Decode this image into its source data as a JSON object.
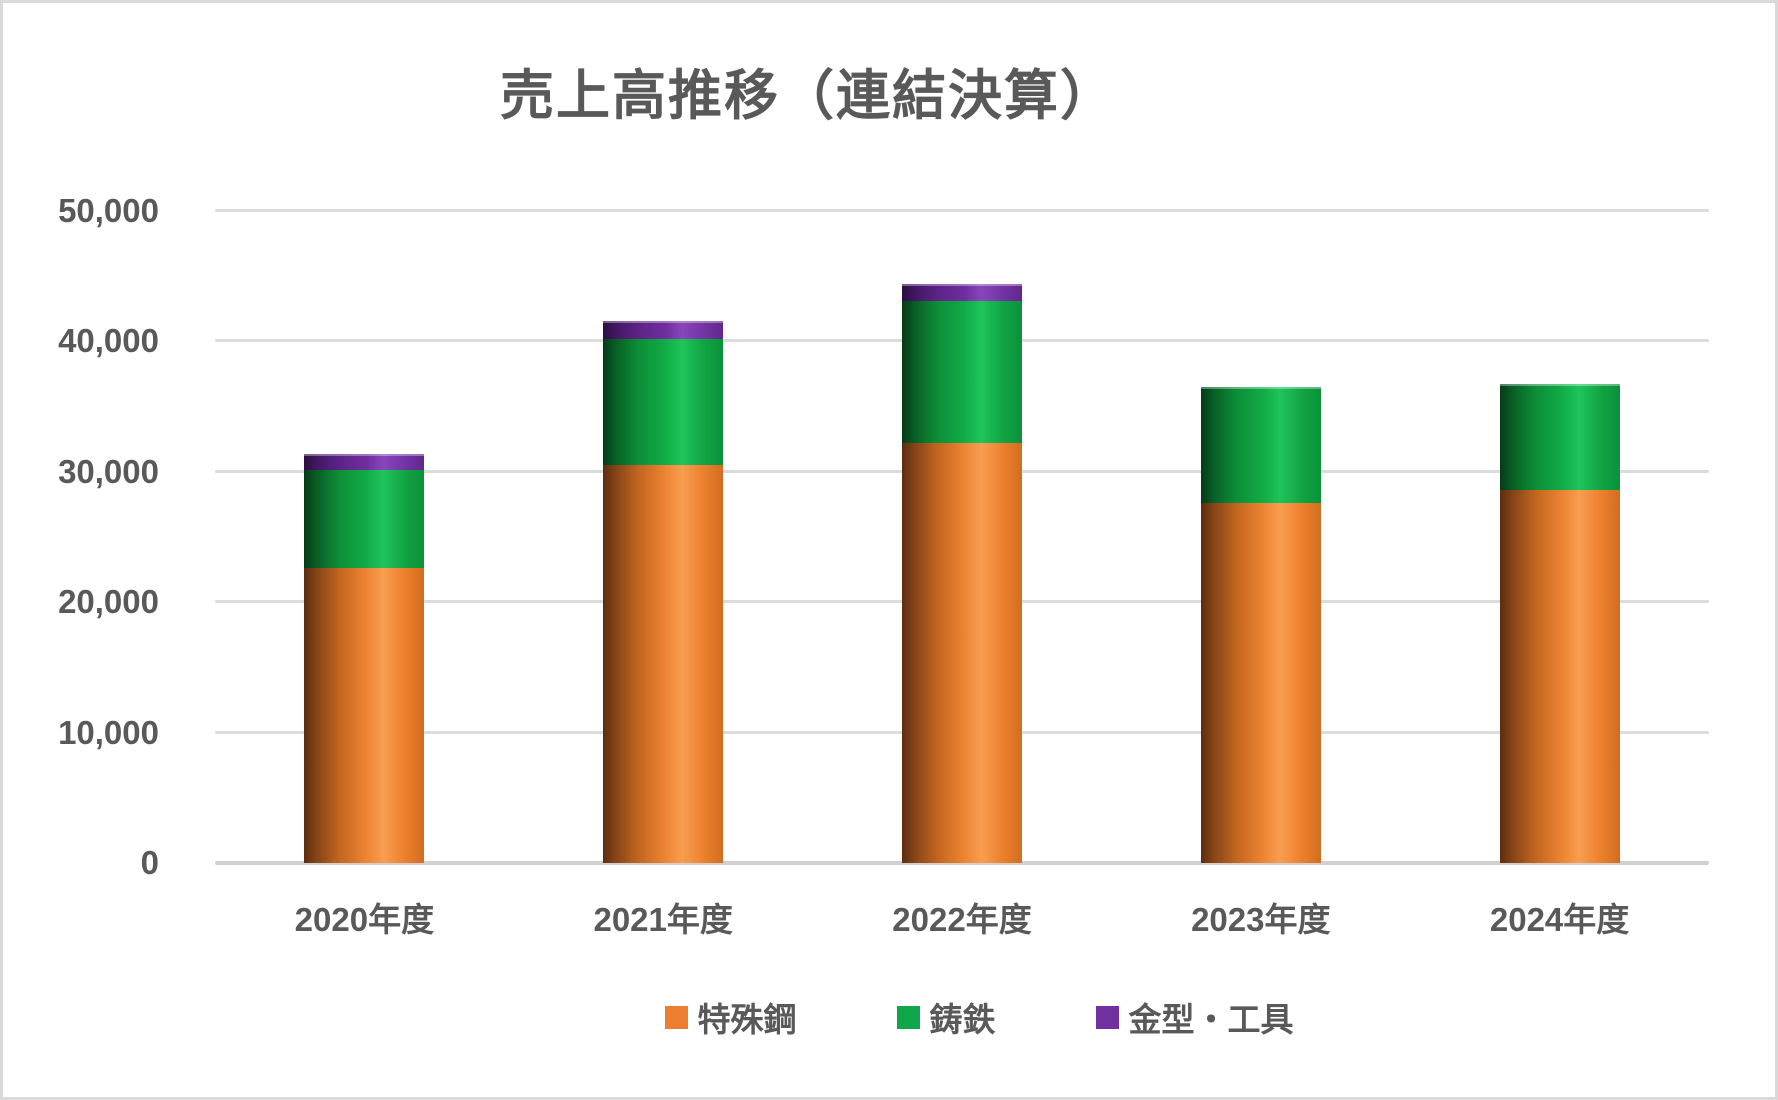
{
  "chart_data": {
    "type": "bar",
    "stacked": true,
    "title": "売上高推移（連結決算）",
    "categories": [
      "2020年度",
      "2021年度",
      "2022年度",
      "2023年度",
      "2024年度"
    ],
    "series": [
      {
        "key": "tokushuko",
        "name": "特殊鋼",
        "color": "#ED7D31",
        "values": [
          22600,
          30500,
          32200,
          27600,
          28600
        ]
      },
      {
        "key": "chutetsu",
        "name": "鋳鉄",
        "color": "#0DA64B",
        "values": [
          7500,
          9700,
          10900,
          8900,
          8100
        ]
      },
      {
        "key": "kanagata-kogu",
        "name": "金型・工具",
        "color": "#7030A0",
        "values": [
          1300,
          1400,
          1300,
          0,
          0
        ]
      }
    ],
    "ylim": [
      0,
      50000
    ],
    "yticks": [
      {
        "value": 0,
        "label": "0"
      },
      {
        "value": 10000,
        "label": "10,000"
      },
      {
        "value": 20000,
        "label": "20,000"
      },
      {
        "value": 30000,
        "label": "30,000"
      },
      {
        "value": 40000,
        "label": "40,000"
      },
      {
        "value": 50000,
        "label": "50,000"
      }
    ],
    "xlabel": "",
    "ylabel": "",
    "grid": true,
    "legend_position": "bottom",
    "text_color": "#595959",
    "grid_color": "#DCDCDC",
    "background_color": "#FFFFFF",
    "border_color": "#D9D9D9"
  }
}
